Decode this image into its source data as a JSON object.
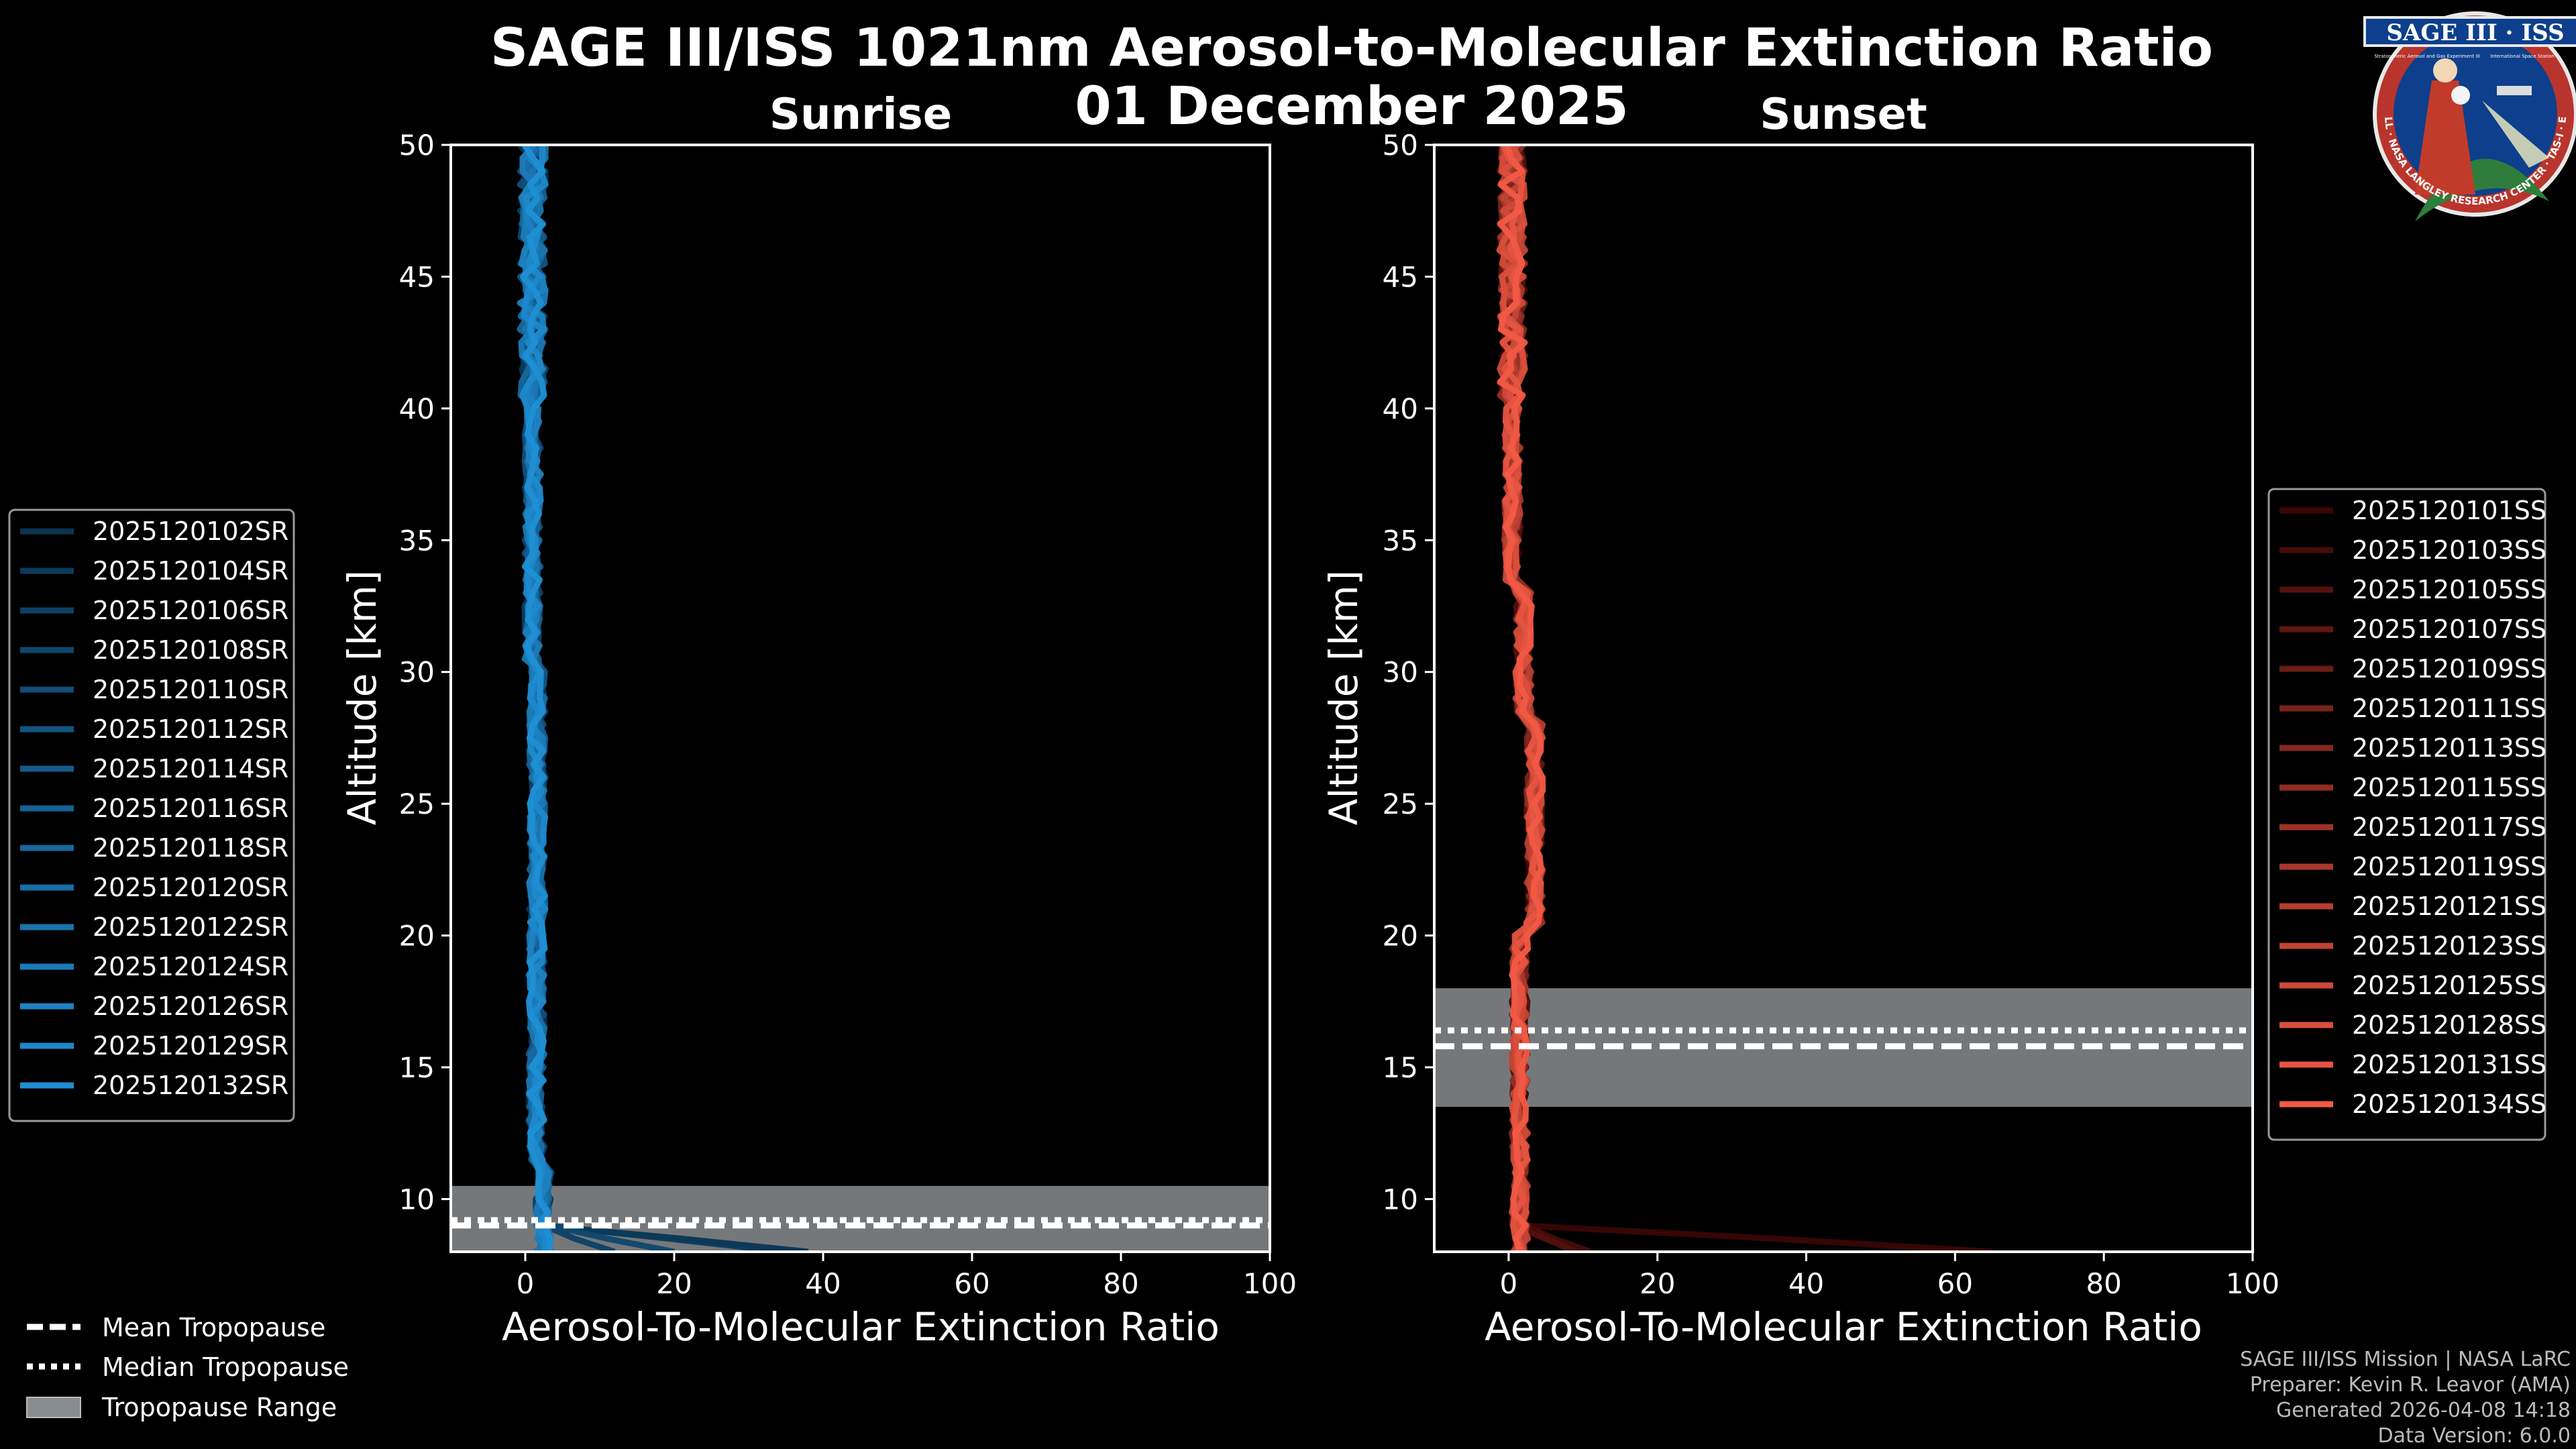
{
  "title": {
    "line1": "SAGE III/ISS 1021nm Aerosol-to-Molecular Extinction Ratio",
    "line2": "01 December 2025"
  },
  "logo": {
    "name": "SAGE III · ISS",
    "subtitle": "Stratospheric Aerosol and Gas Experiment III",
    "station": "International Space Station",
    "ring": "BALL · NASA LANGLEY RESEARCH CENTER · TAS-I · ESA"
  },
  "colors": {
    "background": "#000000",
    "sunrise_line": "#1f8fd4",
    "sunset_line": "#f25a45",
    "tropopause_band": "#8a8d90"
  },
  "chart_data": [
    {
      "type": "line",
      "title": "Sunrise",
      "xlabel": "Aerosol-To-Molecular Extinction Ratio",
      "ylabel": "Altitude [km]",
      "xlim": [
        -10,
        100
      ],
      "ylim": [
        8,
        50
      ],
      "xticks": [
        0,
        20,
        40,
        60,
        80,
        100
      ],
      "yticks": [
        10,
        15,
        20,
        25,
        30,
        35,
        40,
        45,
        50
      ],
      "legend_position": "left",
      "series_names": [
        "2025120102SR",
        "2025120104SR",
        "2025120106SR",
        "2025120108SR",
        "2025120110SR",
        "2025120112SR",
        "2025120114SR",
        "2025120116SR",
        "2025120118SR",
        "2025120120SR",
        "2025120122SR",
        "2025120124SR",
        "2025120126SR",
        "2025120129SR",
        "2025120132SR"
      ],
      "tropopause": {
        "mean": 9.0,
        "median": 9.2,
        "range": [
          8.0,
          10.5
        ]
      },
      "low_altitude_spikes": [
        38,
        35,
        12,
        20
      ],
      "color_dark": "#0b3352",
      "color_light": "#1f8fd4"
    },
    {
      "type": "line",
      "title": "Sunset",
      "xlabel": "Aerosol-To-Molecular Extinction Ratio",
      "ylabel": "Altitude [km]",
      "xlim": [
        -10,
        100
      ],
      "ylim": [
        8,
        50
      ],
      "xticks": [
        0,
        20,
        40,
        60,
        80,
        100
      ],
      "yticks": [
        10,
        15,
        20,
        25,
        30,
        35,
        40,
        45,
        50
      ],
      "legend_position": "right",
      "series_names": [
        "2025120101SS",
        "2025120103SS",
        "2025120105SS",
        "2025120107SS",
        "2025120109SS",
        "2025120111SS",
        "2025120113SS",
        "2025120115SS",
        "2025120117SS",
        "2025120119SS",
        "2025120121SS",
        "2025120123SS",
        "2025120125SS",
        "2025120128SS",
        "2025120131SS",
        "2025120134SS"
      ],
      "tropopause": {
        "mean": 15.8,
        "median": 16.4,
        "range": [
          13.5,
          18.0
        ]
      },
      "low_altitude_spikes": [
        65,
        11,
        9
      ],
      "color_dark": "#3a0605",
      "color_light": "#f25a45"
    }
  ],
  "tropopause_legend": {
    "mean": "Mean Tropopause",
    "median": "Median Tropopause",
    "range": "Tropopause Range"
  },
  "credits": {
    "line1": "SAGE III/ISS Mission | NASA LaRC",
    "line2": "Preparer: Kevin R. Leavor (AMA)",
    "line3": "Generated 2026-04-08 14:18",
    "line4": "Data Version: 6.0.0"
  }
}
